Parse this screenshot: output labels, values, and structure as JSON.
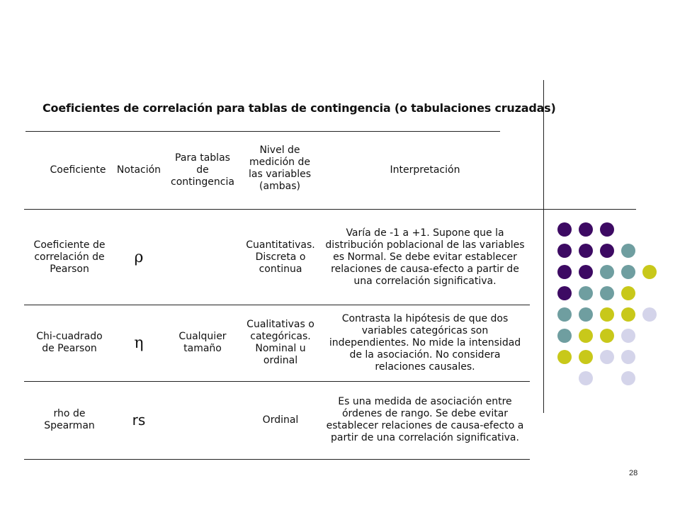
{
  "title": "Coeficientes de correlación para tablas de contingencia (o tabulaciones cruzadas)",
  "table": {
    "headers": [
      "Coeficiente",
      "Notación",
      "Para tablas de contingencia",
      "Nivel de medición de las variables (ambas)",
      "Interpretación"
    ],
    "rows": [
      {
        "coeficiente": "Coeficiente de correlación de Pearson",
        "notacion": "ρ",
        "tablas": "",
        "nivel": "Cuantitativas. Discreta o continua",
        "interpretacion": "Varía de -1 a +1. Supone que la distribución poblacional de las variables es Normal. Se debe evitar establecer relaciones de causa-efecto a partir de una correlación significativa."
      },
      {
        "coeficiente": "Chi-cuadrado de Pearson",
        "notacion": "η",
        "tablas": "Cualquier tamaño",
        "nivel": "Cualitativas o categóricas. Nominal u ordinal",
        "interpretacion": "Contrasta la hipótesis de que dos variables categóricas son independientes. No mide la intensidad de la asociación. No considera relaciones causales."
      },
      {
        "coeficiente": "rho de Spearman",
        "notacion": "rs",
        "tablas": "",
        "nivel": "Ordinal",
        "interpretacion": "Es una medida de asociación entre órdenes de rango. Se debe evitar establecer relaciones de causa-efecto a partir de una correlación significativa."
      }
    ]
  },
  "decoration": {
    "colors": {
      "purple": "#3d0a63",
      "teal": "#6f9ea0",
      "yellow": "#c8c81a",
      "lavender": "#d4d4ea"
    }
  },
  "page_number": "28"
}
